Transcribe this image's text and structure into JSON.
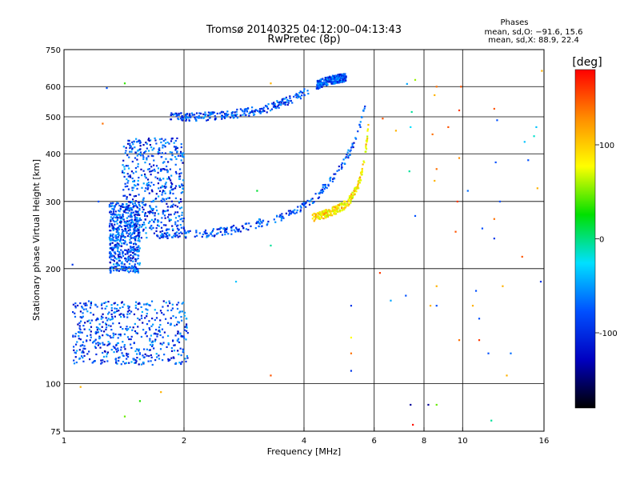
{
  "chart_data": {
    "type": "scatter",
    "title": "Tromsø 20140325 04:12:00–04:13:43",
    "subtitle": "RwPretec (8p)",
    "xlabel": "Frequency [MHz]",
    "ylabel": "Stationary phase Virtual Height [km]",
    "x_scale": "log",
    "y_scale": "log",
    "xlim": [
      1,
      16
    ],
    "ylim": [
      75,
      750
    ],
    "x_ticks": [
      1,
      2,
      4,
      6,
      8,
      10,
      16
    ],
    "y_ticks": [
      75,
      100,
      200,
      300,
      400,
      500,
      600,
      750
    ],
    "stats": {
      "title": "Phases",
      "line_o": "mean, sd,O: −91.6, 15.6",
      "line_x": "mean, sd,X:  88.9, 22.4"
    },
    "colorbar": {
      "label": "[deg]",
      "range": [
        -180,
        180
      ],
      "ticks": [
        100,
        0,
        -100
      ],
      "colors": [
        "#ff0000",
        "#ff8c00",
        "#ffff00",
        "#00e000",
        "#00e0ff",
        "#0050ff",
        "#0000c0",
        "#000000"
      ]
    },
    "series": [
      {
        "name": "O",
        "color_role": "phase ≈ -100 deg",
        "traces": [
          {
            "x": [
              1.75,
              2.0,
              2.2,
              2.4,
              2.6,
              2.8,
              3.0,
              3.2,
              3.5,
              3.8,
              4.0,
              4.3,
              4.6,
              5.0,
              5.3,
              5.5,
              5.7
            ],
            "y": [
              248,
              247,
              247,
              249,
              252,
              256,
              261,
              266,
              273,
              282,
              292,
              310,
              335,
              375,
              420,
              470,
              530
            ]
          },
          {
            "x": [
              1.85,
              2.0,
              2.2,
              2.5,
              2.8,
              3.2,
              3.6,
              3.9,
              4.1
            ],
            "y": [
              505,
              500,
              500,
              505,
              512,
              525,
              548,
              570,
              585
            ]
          },
          {
            "x": [
              4.3,
              4.5,
              4.7,
              4.9,
              5.1
            ],
            "y": [
              605,
              618,
              625,
              630,
              635
            ]
          }
        ],
        "clusters": [
          {
            "x_range": [
              1.4,
              2.0
            ],
            "y_range": [
              240,
              440
            ]
          },
          {
            "x_range": [
              1.3,
              1.55
            ],
            "y_range": [
              195,
              300
            ]
          },
          {
            "x_range": [
              1.05,
              2.05
            ],
            "y_range": [
              112,
              165
            ]
          }
        ]
      },
      {
        "name": "X",
        "color_role": "phase ≈ +100 deg",
        "traces": [
          {
            "x": [
              4.2,
              4.5,
              4.8,
              5.1,
              5.3,
              5.5,
              5.6,
              5.7,
              5.8
            ],
            "y": [
              272,
              278,
              285,
              295,
              310,
              335,
              360,
              400,
              470
            ]
          }
        ]
      }
    ],
    "scattered_points": [
      {
        "x": 1.28,
        "y": 595,
        "phase": -100
      },
      {
        "x": 1.42,
        "y": 612,
        "phase": 20
      },
      {
        "x": 1.25,
        "y": 480,
        "phase": 140
      },
      {
        "x": 1.55,
        "y": 400,
        "phase": -60
      },
      {
        "x": 1.22,
        "y": 300,
        "phase": -100
      },
      {
        "x": 1.05,
        "y": 205,
        "phase": -110
      },
      {
        "x": 1.42,
        "y": 82,
        "phase": 40
      },
      {
        "x": 1.55,
        "y": 90,
        "phase": 10
      },
      {
        "x": 1.75,
        "y": 95,
        "phase": 120
      },
      {
        "x": 1.1,
        "y": 98,
        "phase": 120
      },
      {
        "x": 2.7,
        "y": 185,
        "phase": -60
      },
      {
        "x": 3.3,
        "y": 105,
        "phase": 150
      },
      {
        "x": 3.3,
        "y": 230,
        "phase": -30
      },
      {
        "x": 3.3,
        "y": 612,
        "phase": 120
      },
      {
        "x": 3.05,
        "y": 320,
        "phase": -10
      },
      {
        "x": 5.25,
        "y": 108,
        "phase": -110
      },
      {
        "x": 5.25,
        "y": 160,
        "phase": -110
      },
      {
        "x": 5.25,
        "y": 132,
        "phase": 100
      },
      {
        "x": 5.25,
        "y": 120,
        "phase": 140
      },
      {
        "x": 6.2,
        "y": 195,
        "phase": 160
      },
      {
        "x": 6.6,
        "y": 165,
        "phase": -70
      },
      {
        "x": 7.2,
        "y": 170,
        "phase": -100
      },
      {
        "x": 7.4,
        "y": 88,
        "phase": -140
      },
      {
        "x": 7.5,
        "y": 78,
        "phase": 175
      },
      {
        "x": 7.6,
        "y": 275,
        "phase": -100
      },
      {
        "x": 7.35,
        "y": 360,
        "phase": -30
      },
      {
        "x": 7.4,
        "y": 470,
        "phase": -50
      },
      {
        "x": 7.45,
        "y": 515,
        "phase": -30
      },
      {
        "x": 7.25,
        "y": 610,
        "phase": -70
      },
      {
        "x": 7.6,
        "y": 625,
        "phase": 60
      },
      {
        "x": 6.8,
        "y": 460,
        "phase": 120
      },
      {
        "x": 6.3,
        "y": 495,
        "phase": 150
      },
      {
        "x": 8.2,
        "y": 88,
        "phase": -140
      },
      {
        "x": 8.6,
        "y": 88,
        "phase": 40
      },
      {
        "x": 8.3,
        "y": 160,
        "phase": 120
      },
      {
        "x": 8.6,
        "y": 160,
        "phase": -100
      },
      {
        "x": 8.6,
        "y": 180,
        "phase": 120
      },
      {
        "x": 8.5,
        "y": 340,
        "phase": 120
      },
      {
        "x": 8.6,
        "y": 365,
        "phase": 140
      },
      {
        "x": 8.4,
        "y": 450,
        "phase": 140
      },
      {
        "x": 8.5,
        "y": 570,
        "phase": 120
      },
      {
        "x": 8.6,
        "y": 600,
        "phase": 140
      },
      {
        "x": 9.2,
        "y": 470,
        "phase": 150
      },
      {
        "x": 9.8,
        "y": 520,
        "phase": 160
      },
      {
        "x": 9.9,
        "y": 600,
        "phase": 150
      },
      {
        "x": 9.8,
        "y": 390,
        "phase": 130
      },
      {
        "x": 9.7,
        "y": 300,
        "phase": 160
      },
      {
        "x": 9.6,
        "y": 250,
        "phase": 150
      },
      {
        "x": 9.8,
        "y": 130,
        "phase": 140
      },
      {
        "x": 10.3,
        "y": 320,
        "phase": -90
      },
      {
        "x": 10.8,
        "y": 175,
        "phase": -100
      },
      {
        "x": 10.6,
        "y": 160,
        "phase": 120
      },
      {
        "x": 11.0,
        "y": 148,
        "phase": -100
      },
      {
        "x": 11.0,
        "y": 130,
        "phase": 160
      },
      {
        "x": 11.2,
        "y": 255,
        "phase": -100
      },
      {
        "x": 11.6,
        "y": 120,
        "phase": -100
      },
      {
        "x": 12.0,
        "y": 240,
        "phase": -110
      },
      {
        "x": 12.2,
        "y": 490,
        "phase": -100
      },
      {
        "x": 12.0,
        "y": 525,
        "phase": 150
      },
      {
        "x": 12.0,
        "y": 270,
        "phase": 140
      },
      {
        "x": 12.1,
        "y": 380,
        "phase": -100
      },
      {
        "x": 12.4,
        "y": 300,
        "phase": -100
      },
      {
        "x": 12.6,
        "y": 180,
        "phase": 120
      },
      {
        "x": 12.9,
        "y": 105,
        "phase": 120
      },
      {
        "x": 11.8,
        "y": 80,
        "phase": -30
      },
      {
        "x": 13.2,
        "y": 120,
        "phase": -90
      },
      {
        "x": 14.3,
        "y": 430,
        "phase": -60
      },
      {
        "x": 14.6,
        "y": 385,
        "phase": -100
      },
      {
        "x": 14.1,
        "y": 215,
        "phase": 150
      },
      {
        "x": 15.3,
        "y": 470,
        "phase": -60
      },
      {
        "x": 15.1,
        "y": 445,
        "phase": -40
      },
      {
        "x": 15.4,
        "y": 325,
        "phase": 120
      },
      {
        "x": 15.7,
        "y": 185,
        "phase": -110
      },
      {
        "x": 15.8,
        "y": 660,
        "phase": 120
      }
    ]
  }
}
